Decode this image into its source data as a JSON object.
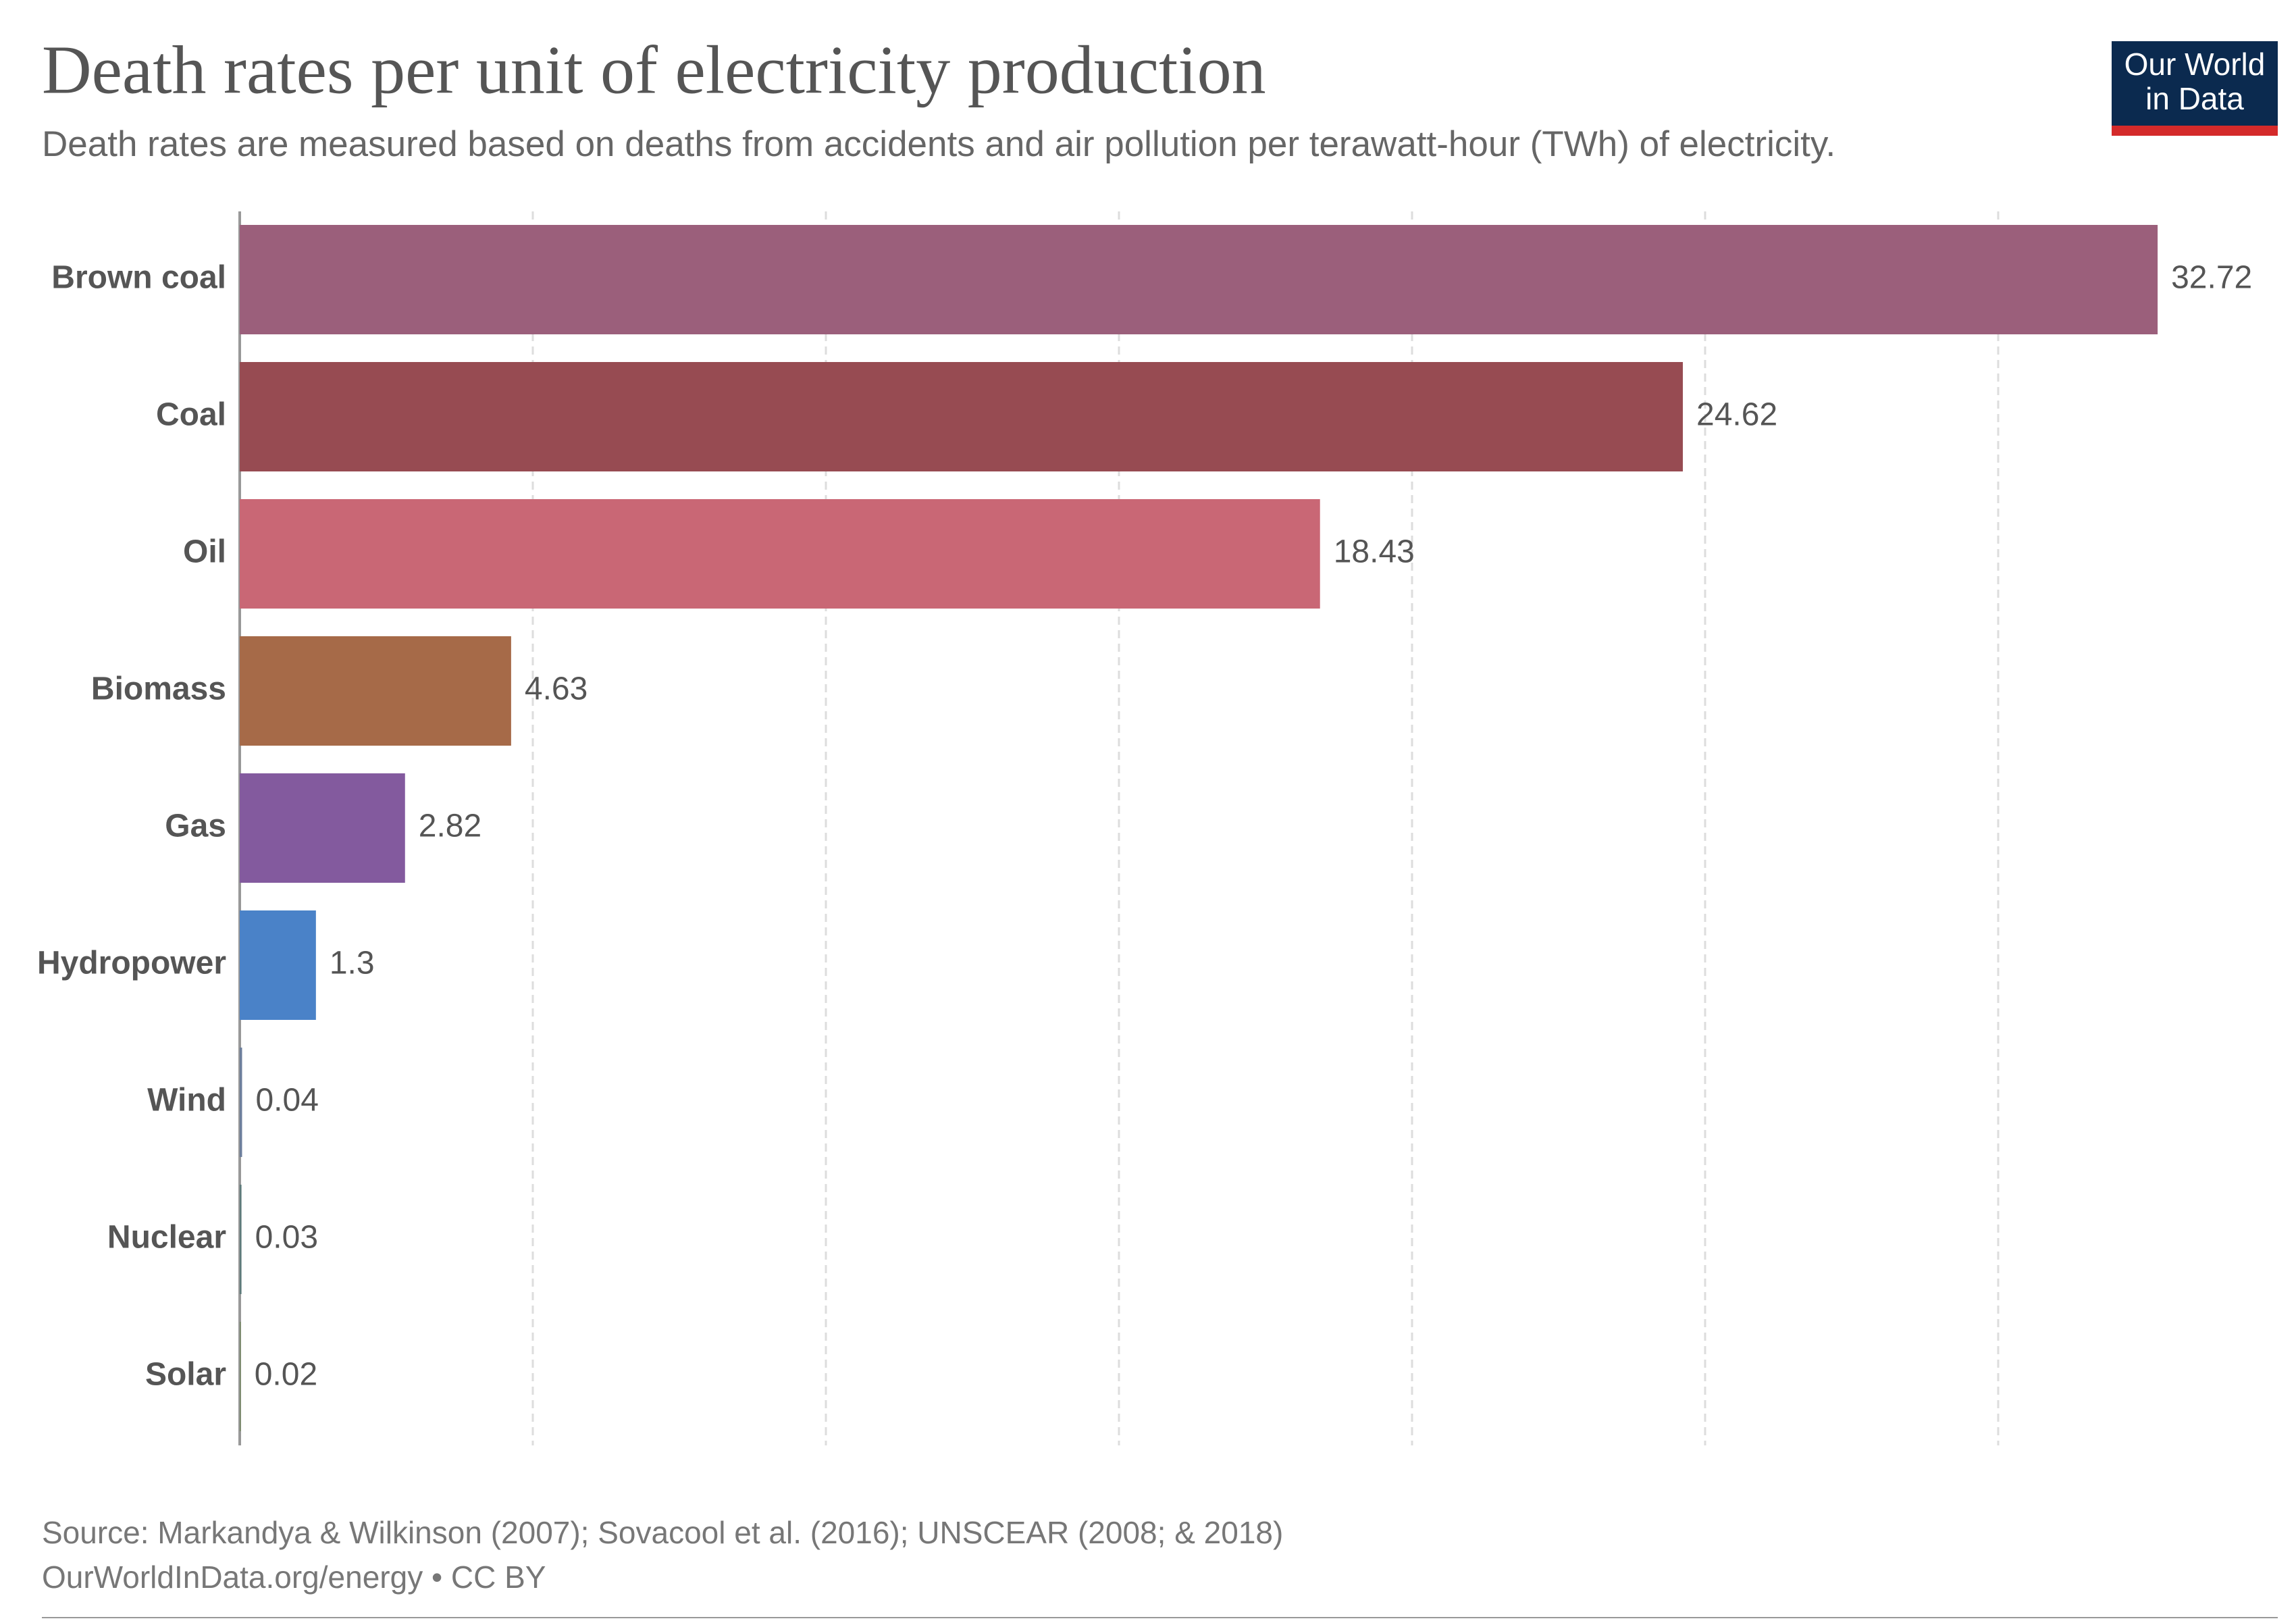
{
  "chart_data": {
    "type": "hbar",
    "title": "Death rates per unit of electricity production",
    "subtitle": "Death rates are measured based on deaths from accidents and air pollution per terawatt-hour (TWh) of electricity.",
    "logo": [
      "Our World",
      "in Data"
    ],
    "source": "Source: Markandya & Wilkinson (2007); Sovacool et al. (2016); UNSCEAR (2008; & 2018)",
    "footer": "OurWorldInData.org/energy • CC BY",
    "categories": [
      "Brown coal",
      "Coal",
      "Oil",
      "Biomass",
      "Gas",
      "Hydropower",
      "Wind",
      "Nuclear",
      "Solar"
    ],
    "values": [
      32.72,
      24.62,
      18.43,
      4.63,
      2.82,
      1.3,
      0.04,
      0.03,
      0.02
    ],
    "colors": [
      "#9b5f7b",
      "#974b52",
      "#c96775",
      "#a66a48",
      "#835a9e",
      "#4a82c8",
      "#6c7e9c",
      "#5d7a7a",
      "#7a8a6a"
    ],
    "xlim": [
      0,
      35
    ],
    "xticks": [
      0,
      5,
      10,
      15,
      20,
      25,
      30
    ],
    "grid": true
  }
}
